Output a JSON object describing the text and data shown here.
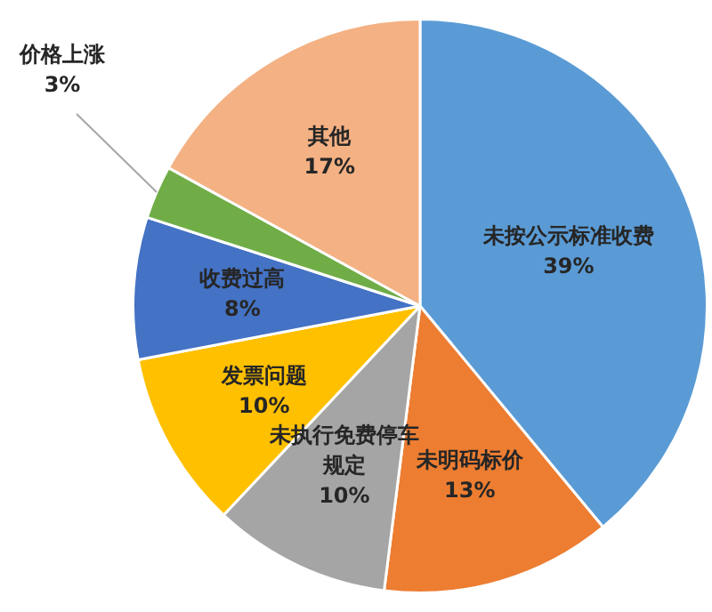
{
  "chart_data": {
    "type": "pie",
    "categories": [
      "未按公示标准收费",
      "未明码标价",
      "未执行免费停车规定",
      "发票问题",
      "收费过高",
      "价格上涨",
      "其他"
    ],
    "values": [
      39,
      13,
      10,
      10,
      8,
      3,
      17
    ],
    "value_labels": [
      "39%",
      "13%",
      "10%",
      "10%",
      "8%",
      "3%",
      "17%"
    ],
    "colors": [
      "#5b9bd5",
      "#ed7d31",
      "#a5a5a5",
      "#ffc000",
      "#4472c4",
      "#70ad47",
      "#f4b183"
    ],
    "legend": false
  }
}
